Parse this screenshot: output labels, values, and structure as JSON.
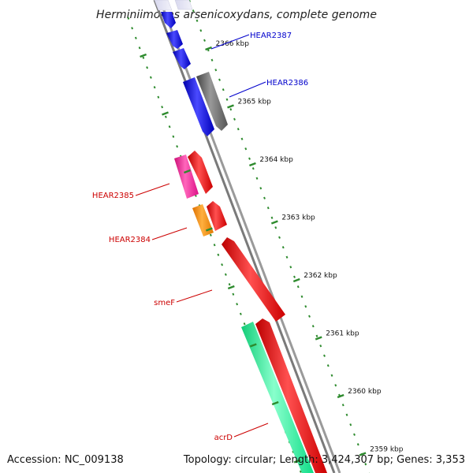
{
  "title": "Herminiimonas arsenicoxydans, complete genome",
  "accession_label": "Accession: NC_009138",
  "summary_label": "Topology: circular; Length: 3,424,307 bp; Genes: 3,353",
  "ticks": [
    {
      "label": "2366 kbp",
      "kbp": 2366
    },
    {
      "label": "2365 kbp",
      "kbp": 2365
    },
    {
      "label": "2364 kbp",
      "kbp": 2364
    },
    {
      "label": "2363 kbp",
      "kbp": 2363
    },
    {
      "label": "2362 kbp",
      "kbp": 2362
    },
    {
      "label": "2361 kbp",
      "kbp": 2361
    },
    {
      "label": "2360 kbp",
      "kbp": 2360
    },
    {
      "label": "2359 kbp",
      "kbp": 2359
    }
  ],
  "gene_labels": [
    {
      "name": "HEAR2387",
      "color": "#0000cc"
    },
    {
      "name": "HEAR2386",
      "color": "#0000cc"
    },
    {
      "name": "HEAR2385",
      "color": "#cc0000"
    },
    {
      "name": "HEAR2384",
      "color": "#cc0000"
    },
    {
      "name": "smeF",
      "color": "#cc0000"
    },
    {
      "name": "acrD",
      "color": "#cc0000"
    }
  ],
  "colors": {
    "backbone": "#888888",
    "tick_marks": "#2e8b2e",
    "gene_blue": "#1010ee",
    "gene_grey": "#666666",
    "gene_red": "#ee1111",
    "gene_pink": "#ee2299",
    "gene_orange": "#ff8c00",
    "gene_green": "#22ee99"
  }
}
